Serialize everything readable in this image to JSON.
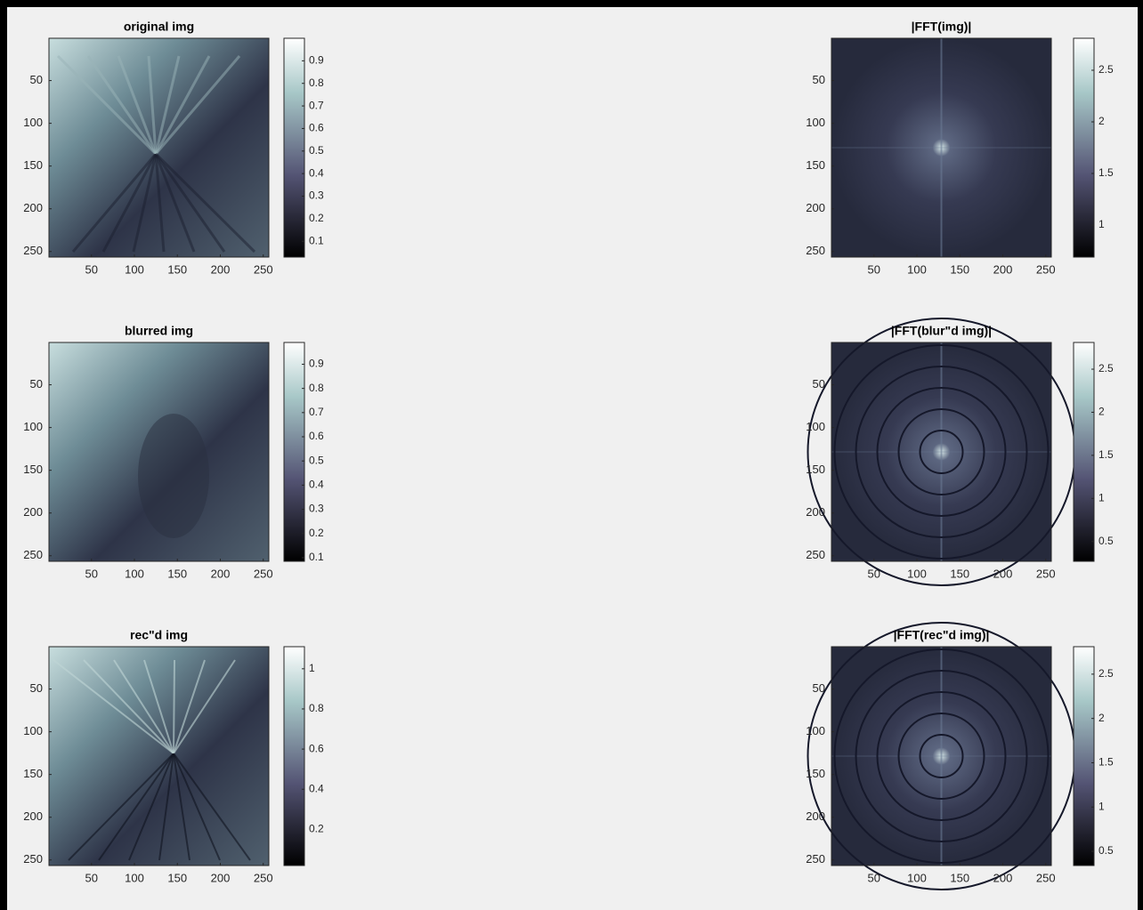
{
  "chart_data": [
    {
      "type": "image",
      "title": "original img",
      "colormap": "bone",
      "xlim": [
        0.5,
        256.5
      ],
      "ylim": [
        0.5,
        256.5
      ],
      "ydir": "reverse",
      "xticks": [
        50,
        100,
        150,
        200,
        250
      ],
      "yticks": [
        50,
        100,
        150,
        200,
        250
      ],
      "clim": [
        0.03,
        1.0
      ],
      "cticks": [
        0.1,
        0.2,
        0.3,
        0.4,
        0.5,
        0.6,
        0.7,
        0.8,
        0.9
      ]
    },
    {
      "type": "image",
      "title": "|FFT(img)|",
      "colormap": "bone",
      "xlim": [
        0.5,
        256.5
      ],
      "ylim": [
        0.5,
        256.5
      ],
      "ydir": "reverse",
      "xticks": [
        50,
        100,
        150,
        200,
        250
      ],
      "yticks": [
        50,
        100,
        150,
        200,
        250
      ],
      "clim": [
        0.69,
        2.81
      ],
      "cticks": [
        1,
        1.5,
        2,
        2.5
      ]
    },
    {
      "type": "image",
      "title": "blurred img",
      "colormap": "bone",
      "xlim": [
        0.5,
        256.5
      ],
      "ylim": [
        0.5,
        256.5
      ],
      "ydir": "reverse",
      "xticks": [
        50,
        100,
        150,
        200,
        250
      ],
      "yticks": [
        50,
        100,
        150,
        200,
        250
      ],
      "clim": [
        0.085,
        0.99
      ],
      "cticks": [
        0.1,
        0.2,
        0.3,
        0.4,
        0.5,
        0.6,
        0.7,
        0.8,
        0.9
      ]
    },
    {
      "type": "image",
      "title": "|FFT(blur\"d img)|",
      "colormap": "bone",
      "xlim": [
        0.5,
        256.5
      ],
      "ylim": [
        0.5,
        256.5
      ],
      "ydir": "reverse",
      "xticks": [
        50,
        100,
        150,
        200,
        250
      ],
      "yticks": [
        50,
        100,
        150,
        200,
        250
      ],
      "clim": [
        0.27,
        2.81
      ],
      "cticks": [
        0.5,
        1,
        1.5,
        2,
        2.5
      ]
    },
    {
      "type": "image",
      "title": "rec\"d img",
      "colormap": "bone",
      "xlim": [
        0.5,
        256.5
      ],
      "ylim": [
        0.5,
        256.5
      ],
      "ydir": "reverse",
      "xticks": [
        50,
        100,
        150,
        200,
        250
      ],
      "yticks": [
        50,
        100,
        150,
        200,
        250
      ],
      "clim": [
        0.02,
        1.11
      ],
      "cticks": [
        0.2,
        0.4,
        0.6,
        0.8,
        1
      ]
    },
    {
      "type": "image",
      "title": "|FFT(rec\"d img)|",
      "colormap": "bone",
      "xlim": [
        0.5,
        256.5
      ],
      "ylim": [
        0.5,
        256.5
      ],
      "ydir": "reverse",
      "xticks": [
        50,
        100,
        150,
        200,
        250
      ],
      "yticks": [
        50,
        100,
        150,
        200,
        250
      ],
      "clim": [
        0.34,
        2.81
      ],
      "cticks": [
        0.5,
        1,
        1.5,
        2,
        2.5
      ]
    }
  ]
}
